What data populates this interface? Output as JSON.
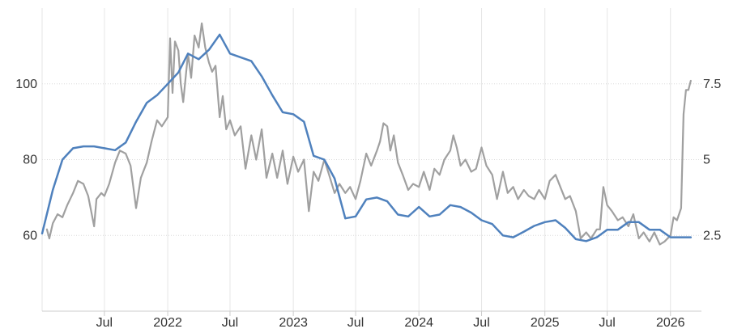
{
  "chart_data": {
    "type": "line",
    "title": "",
    "x_axis": {
      "type": "date",
      "range": [
        "2021-01-01",
        "2026-04-01"
      ],
      "ticks": [
        {
          "date": "2021-07-01",
          "label": "Jul"
        },
        {
          "date": "2022-01-01",
          "label": "2022"
        },
        {
          "date": "2022-07-01",
          "label": "Jul"
        },
        {
          "date": "2023-01-01",
          "label": "2023"
        },
        {
          "date": "2023-07-01",
          "label": "Jul"
        },
        {
          "date": "2024-01-01",
          "label": "2024"
        },
        {
          "date": "2024-07-01",
          "label": "Jul"
        },
        {
          "date": "2025-01-01",
          "label": "2025"
        },
        {
          "date": "2025-07-01",
          "label": "Jul"
        },
        {
          "date": "2026-01-01",
          "label": "2026"
        }
      ]
    },
    "y_axis_left": {
      "range": [
        40,
        120
      ],
      "ticks": [
        {
          "value": 60,
          "label": "60"
        },
        {
          "value": 80,
          "label": "80"
        },
        {
          "value": 100,
          "label": "100"
        }
      ]
    },
    "y_axis_right": {
      "range": [
        0,
        10
      ],
      "ticks": [
        {
          "value": 2.5,
          "label": "2.5"
        },
        {
          "value": 5,
          "label": "5"
        },
        {
          "value": 7.5,
          "label": "7.5"
        }
      ]
    },
    "grid": true,
    "legend": "none",
    "series": [
      {
        "axis": "left",
        "color": "#4f81bd",
        "points": [
          [
            "2021-01-01",
            60.5
          ],
          [
            "2021-02-01",
            72
          ],
          [
            "2021-03-01",
            80
          ],
          [
            "2021-04-01",
            83
          ],
          [
            "2021-05-01",
            83.5
          ],
          [
            "2021-06-01",
            83.5
          ],
          [
            "2021-07-01",
            83
          ],
          [
            "2021-08-01",
            82.5
          ],
          [
            "2021-09-01",
            84.5
          ],
          [
            "2021-10-01",
            90
          ],
          [
            "2021-11-01",
            95
          ],
          [
            "2021-12-01",
            97
          ],
          [
            "2022-01-01",
            100
          ],
          [
            "2022-02-01",
            103
          ],
          [
            "2022-03-01",
            108
          ],
          [
            "2022-04-01",
            106.5
          ],
          [
            "2022-05-01",
            109
          ],
          [
            "2022-06-01",
            113
          ],
          [
            "2022-07-01",
            108
          ],
          [
            "2022-08-01",
            107
          ],
          [
            "2022-09-01",
            106
          ],
          [
            "2022-10-01",
            102
          ],
          [
            "2022-11-01",
            97
          ],
          [
            "2022-12-01",
            92.5
          ],
          [
            "2023-01-01",
            92
          ],
          [
            "2023-02-01",
            90
          ],
          [
            "2023-03-01",
            81
          ],
          [
            "2023-04-01",
            80
          ],
          [
            "2023-05-01",
            75
          ],
          [
            "2023-06-01",
            64.5
          ],
          [
            "2023-07-01",
            65
          ],
          [
            "2023-08-01",
            69.5
          ],
          [
            "2023-09-01",
            70
          ],
          [
            "2023-10-01",
            69
          ],
          [
            "2023-11-01",
            65.5
          ],
          [
            "2023-12-01",
            65
          ],
          [
            "2024-01-01",
            67.5
          ],
          [
            "2024-02-01",
            65
          ],
          [
            "2024-03-01",
            65.5
          ],
          [
            "2024-04-01",
            68
          ],
          [
            "2024-05-01",
            67.5
          ],
          [
            "2024-06-01",
            66
          ],
          [
            "2024-07-01",
            64
          ],
          [
            "2024-08-01",
            63
          ],
          [
            "2024-09-01",
            60
          ],
          [
            "2024-10-01",
            59.5
          ],
          [
            "2024-11-01",
            61
          ],
          [
            "2024-12-01",
            62.5
          ],
          [
            "2025-01-01",
            63.5
          ],
          [
            "2025-02-01",
            64
          ],
          [
            "2025-03-01",
            62
          ],
          [
            "2025-04-01",
            59
          ],
          [
            "2025-05-01",
            58.5
          ],
          [
            "2025-06-01",
            59.5
          ],
          [
            "2025-07-01",
            61.5
          ],
          [
            "2025-08-01",
            61.5
          ],
          [
            "2025-09-01",
            63.5
          ],
          [
            "2025-10-01",
            63.5
          ],
          [
            "2025-11-01",
            61.5
          ],
          [
            "2025-12-01",
            61.5
          ],
          [
            "2026-01-01",
            59.5
          ],
          [
            "2026-03-01",
            59.5
          ]
        ]
      },
      {
        "axis": "right",
        "color": "#a0a0a0",
        "points": [
          [
            "2021-01-15",
            2.7
          ],
          [
            "2021-01-22",
            2.4
          ],
          [
            "2021-02-01",
            2.9
          ],
          [
            "2021-02-15",
            3.2
          ],
          [
            "2021-03-01",
            3.1
          ],
          [
            "2021-03-15",
            3.5
          ],
          [
            "2021-04-01",
            3.9
          ],
          [
            "2021-04-15",
            4.3
          ],
          [
            "2021-05-01",
            4.2
          ],
          [
            "2021-05-15",
            3.8
          ],
          [
            "2021-06-01",
            2.8
          ],
          [
            "2021-06-08",
            3.7
          ],
          [
            "2021-06-22",
            3.9
          ],
          [
            "2021-07-01",
            3.8
          ],
          [
            "2021-07-15",
            4.2
          ],
          [
            "2021-08-01",
            4.9
          ],
          [
            "2021-08-15",
            5.3
          ],
          [
            "2021-09-01",
            5.2
          ],
          [
            "2021-09-15",
            4.8
          ],
          [
            "2021-10-01",
            3.4
          ],
          [
            "2021-10-15",
            4.4
          ],
          [
            "2021-11-01",
            4.9
          ],
          [
            "2021-11-15",
            5.6
          ],
          [
            "2021-12-01",
            6.3
          ],
          [
            "2021-12-15",
            6.1
          ],
          [
            "2022-01-01",
            6.4
          ],
          [
            "2022-01-08",
            9.0
          ],
          [
            "2022-01-15",
            7.2
          ],
          [
            "2022-01-22",
            8.9
          ],
          [
            "2022-02-01",
            8.6
          ],
          [
            "2022-02-08",
            7.5
          ],
          [
            "2022-02-15",
            6.9
          ],
          [
            "2022-03-01",
            8.5
          ],
          [
            "2022-03-10",
            7.7
          ],
          [
            "2022-03-20",
            9.1
          ],
          [
            "2022-04-01",
            8.7
          ],
          [
            "2022-04-10",
            9.5
          ],
          [
            "2022-04-20",
            8.7
          ],
          [
            "2022-05-01",
            8.2
          ],
          [
            "2022-05-10",
            7.9
          ],
          [
            "2022-05-20",
            8.1
          ],
          [
            "2022-06-01",
            6.4
          ],
          [
            "2022-06-10",
            7.1
          ],
          [
            "2022-06-20",
            6.0
          ],
          [
            "2022-07-01",
            6.3
          ],
          [
            "2022-07-15",
            5.8
          ],
          [
            "2022-08-01",
            6.1
          ],
          [
            "2022-08-15",
            4.7
          ],
          [
            "2022-09-01",
            5.8
          ],
          [
            "2022-09-15",
            5.0
          ],
          [
            "2022-10-01",
            6.0
          ],
          [
            "2022-10-15",
            4.4
          ],
          [
            "2022-11-01",
            5.2
          ],
          [
            "2022-11-15",
            4.4
          ],
          [
            "2022-12-01",
            5.3
          ],
          [
            "2022-12-15",
            4.2
          ],
          [
            "2023-01-01",
            5.1
          ],
          [
            "2023-01-15",
            4.6
          ],
          [
            "2023-02-01",
            5.0
          ],
          [
            "2023-02-15",
            3.3
          ],
          [
            "2023-03-01",
            4.6
          ],
          [
            "2023-03-15",
            4.3
          ],
          [
            "2023-04-01",
            5.0
          ],
          [
            "2023-04-15",
            4.5
          ],
          [
            "2023-05-01",
            3.9
          ],
          [
            "2023-05-15",
            4.2
          ],
          [
            "2023-06-01",
            3.9
          ],
          [
            "2023-06-15",
            4.1
          ],
          [
            "2023-07-01",
            3.7
          ],
          [
            "2023-07-15",
            4.3
          ],
          [
            "2023-08-01",
            5.2
          ],
          [
            "2023-08-15",
            4.8
          ],
          [
            "2023-09-01",
            5.3
          ],
          [
            "2023-09-10",
            5.6
          ],
          [
            "2023-09-20",
            6.2
          ],
          [
            "2023-10-01",
            6.1
          ],
          [
            "2023-10-10",
            5.3
          ],
          [
            "2023-10-20",
            5.8
          ],
          [
            "2023-11-01",
            4.9
          ],
          [
            "2023-11-15",
            4.5
          ],
          [
            "2023-12-01",
            4.0
          ],
          [
            "2023-12-15",
            4.2
          ],
          [
            "2024-01-01",
            4.1
          ],
          [
            "2024-01-15",
            4.6
          ],
          [
            "2024-02-01",
            4.0
          ],
          [
            "2024-02-15",
            4.7
          ],
          [
            "2024-03-01",
            4.5
          ],
          [
            "2024-03-15",
            5.0
          ],
          [
            "2024-04-01",
            5.3
          ],
          [
            "2024-04-10",
            5.8
          ],
          [
            "2024-04-20",
            5.4
          ],
          [
            "2024-05-01",
            4.8
          ],
          [
            "2024-05-15",
            5.0
          ],
          [
            "2024-06-01",
            4.6
          ],
          [
            "2024-06-15",
            4.7
          ],
          [
            "2024-07-01",
            5.4
          ],
          [
            "2024-07-15",
            4.8
          ],
          [
            "2024-08-01",
            4.5
          ],
          [
            "2024-08-15",
            3.7
          ],
          [
            "2024-09-01",
            4.6
          ],
          [
            "2024-09-15",
            3.9
          ],
          [
            "2024-10-01",
            4.1
          ],
          [
            "2024-10-15",
            3.7
          ],
          [
            "2024-11-01",
            4.0
          ],
          [
            "2024-11-15",
            3.8
          ],
          [
            "2024-12-01",
            3.7
          ],
          [
            "2024-12-15",
            4.0
          ],
          [
            "2025-01-01",
            3.7
          ],
          [
            "2025-01-15",
            4.3
          ],
          [
            "2025-02-01",
            4.5
          ],
          [
            "2025-02-15",
            4.1
          ],
          [
            "2025-03-01",
            3.7
          ],
          [
            "2025-03-15",
            3.8
          ],
          [
            "2025-04-01",
            3.3
          ],
          [
            "2025-04-15",
            2.4
          ],
          [
            "2025-05-01",
            2.6
          ],
          [
            "2025-05-15",
            2.4
          ],
          [
            "2025-06-01",
            2.7
          ],
          [
            "2025-06-10",
            2.7
          ],
          [
            "2025-06-20",
            4.1
          ],
          [
            "2025-07-01",
            3.5
          ],
          [
            "2025-07-15",
            3.3
          ],
          [
            "2025-08-01",
            3.0
          ],
          [
            "2025-08-15",
            3.1
          ],
          [
            "2025-09-01",
            2.8
          ],
          [
            "2025-09-15",
            3.2
          ],
          [
            "2025-10-01",
            2.4
          ],
          [
            "2025-10-15",
            2.6
          ],
          [
            "2025-11-01",
            2.3
          ],
          [
            "2025-11-15",
            2.6
          ],
          [
            "2025-12-01",
            2.2
          ],
          [
            "2025-12-15",
            2.3
          ],
          [
            "2026-01-01",
            2.5
          ],
          [
            "2026-01-10",
            3.1
          ],
          [
            "2026-01-20",
            3.0
          ],
          [
            "2026-02-01",
            3.4
          ],
          [
            "2026-02-08",
            6.5
          ],
          [
            "2026-02-15",
            7.3
          ],
          [
            "2026-02-22",
            7.3
          ],
          [
            "2026-03-01",
            7.6
          ]
        ]
      }
    ]
  }
}
